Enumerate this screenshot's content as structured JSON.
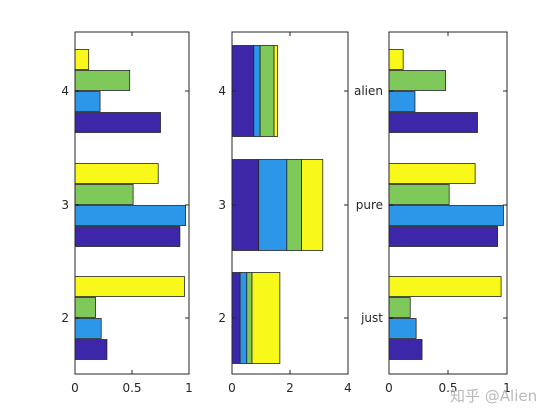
{
  "colors": {
    "series": [
      "#3e26a8",
      "#2c96e9",
      "#7ec95a",
      "#f9f81b"
    ],
    "axis": "#262626"
  },
  "watermark": "知乎 @Alien",
  "chart_data": [
    {
      "type": "bar",
      "orientation": "horizontal",
      "mode": "grouped",
      "categories": [
        "2",
        "3",
        "4"
      ],
      "series": [
        {
          "values": [
            0.28,
            0.92,
            0.75
          ]
        },
        {
          "values": [
            0.23,
            0.97,
            0.22
          ]
        },
        {
          "values": [
            0.18,
            0.51,
            0.48
          ]
        },
        {
          "values": [
            0.96,
            0.73,
            0.12
          ]
        }
      ],
      "xlim": [
        0,
        1
      ],
      "xticks": [
        "0",
        "0.5",
        "1"
      ],
      "grid": false
    },
    {
      "type": "bar",
      "orientation": "horizontal",
      "mode": "stacked",
      "categories": [
        "2",
        "3",
        "4"
      ],
      "series": [
        {
          "values": [
            0.28,
            0.92,
            0.75
          ]
        },
        {
          "values": [
            0.23,
            0.97,
            0.22
          ]
        },
        {
          "values": [
            0.18,
            0.51,
            0.48
          ]
        },
        {
          "values": [
            0.96,
            0.73,
            0.12
          ]
        }
      ],
      "xlim": [
        0,
        4
      ],
      "xticks": [
        "0",
        "2",
        "4"
      ],
      "grid": false
    },
    {
      "type": "bar",
      "orientation": "horizontal",
      "mode": "grouped",
      "categories": [
        "just",
        "pure",
        "alien"
      ],
      "series": [
        {
          "values": [
            0.28,
            0.92,
            0.75
          ]
        },
        {
          "values": [
            0.23,
            0.97,
            0.22
          ]
        },
        {
          "values": [
            0.18,
            0.51,
            0.48
          ]
        },
        {
          "values": [
            0.95,
            0.73,
            0.12
          ]
        }
      ],
      "xlim": [
        0,
        1
      ],
      "xticks": [
        "0",
        "0.5",
        "1"
      ],
      "grid": false
    }
  ]
}
